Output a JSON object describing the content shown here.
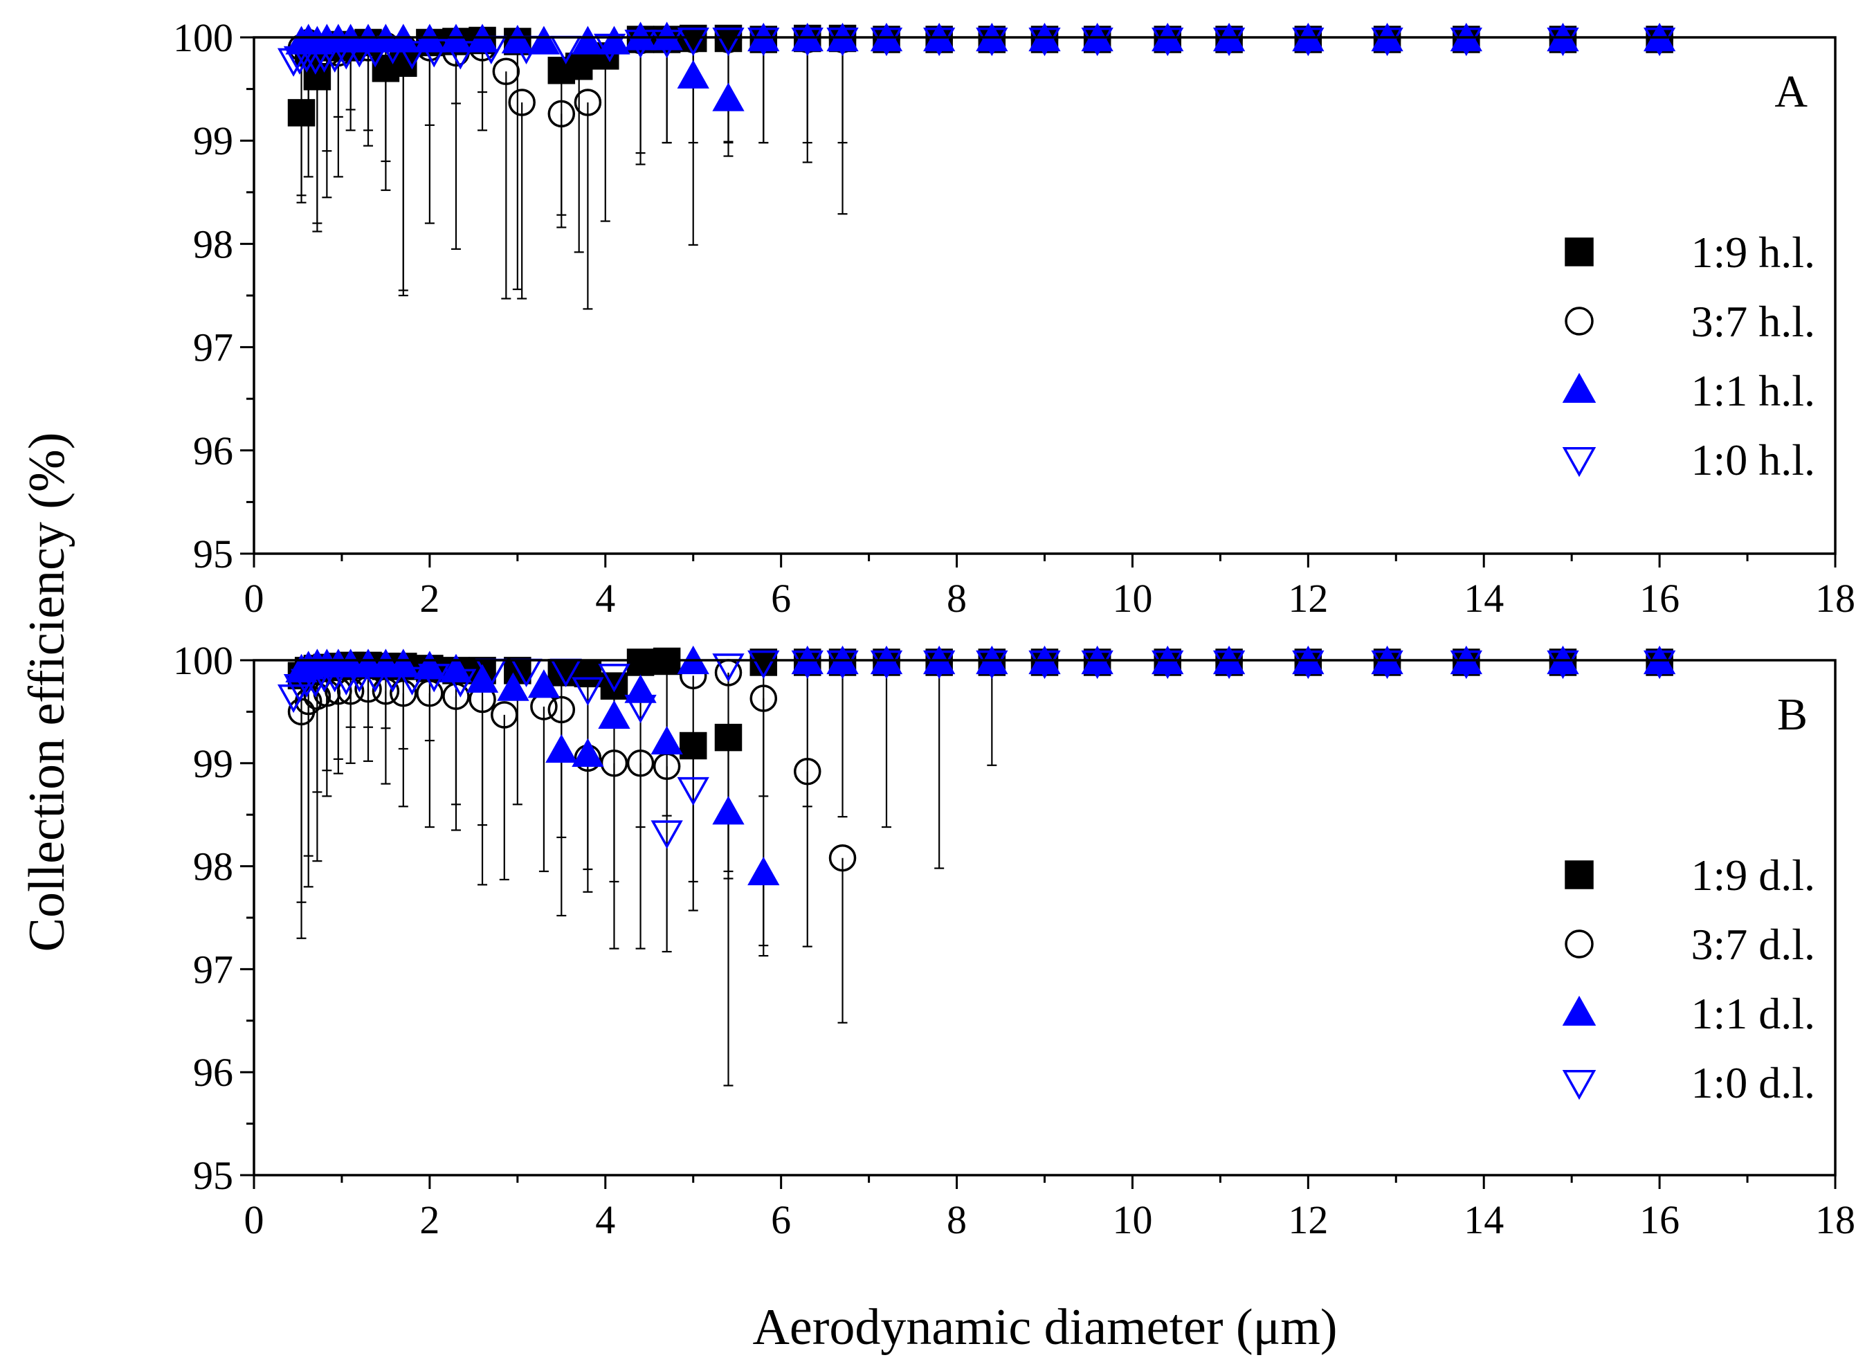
{
  "figure": {
    "xlabel": "Aerodynamic diameter (μm)",
    "ylabel": "Collection efficiency (%)"
  },
  "colors": {
    "black": "#000000",
    "blue": "#0000ff"
  },
  "chart_data": [
    {
      "type": "scatter",
      "panel": "A",
      "xlim": [
        0,
        18
      ],
      "ylim": [
        95,
        100
      ],
      "xticks": [
        0,
        2,
        4,
        6,
        8,
        10,
        12,
        14,
        16,
        18
      ],
      "yticks": [
        95,
        96,
        97,
        98,
        99,
        100
      ],
      "legend_position": "right",
      "series": [
        {
          "name": "1:9 h.l.",
          "marker": "square",
          "color": "#000000",
          "filled": true,
          "x": [
            0.54,
            0.62,
            0.72,
            0.83,
            0.96,
            1.1,
            1.3,
            1.5,
            1.7,
            2.0,
            2.3,
            2.6,
            3.0,
            3.5,
            3.7,
            4.0,
            4.4,
            4.7,
            5.0,
            5.4,
            5.8,
            6.3,
            6.7,
            7.2,
            7.8,
            8.4,
            9.0,
            9.6,
            10.4,
            11.1,
            12.0,
            12.9,
            13.8,
            14.9,
            16.0
          ],
          "y": [
            99.27,
            99.85,
            99.62,
            99.9,
            99.93,
            99.9,
            99.95,
            99.7,
            99.75,
            99.95,
            99.96,
            99.97,
            99.96,
            99.68,
            99.72,
            99.82,
            99.98,
            99.98,
            99.99,
            99.99,
            99.98,
            99.99,
            99.99,
            99.98,
            99.98,
            99.98,
            99.98,
            99.98,
            99.98,
            99.98,
            99.98,
            99.98,
            99.98,
            99.98,
            99.98
          ],
          "err_low": [
            0.8,
            0.6,
            1.5,
            1.0,
            0.7,
            0.6,
            1.0,
            0.9,
            2.2,
            0.8,
            0.6,
            0.5,
            2.4,
            1.4,
            1.8,
            1.6,
            1.1,
            1.0,
            2.0,
            1.0,
            1.0,
            1.2,
            1.7,
            0,
            0,
            0,
            0,
            0,
            0,
            0,
            0,
            0,
            0,
            0,
            0
          ]
        },
        {
          "name": "3:7 h.l.",
          "marker": "circle",
          "color": "#000000",
          "filled": false,
          "x": [
            0.54,
            0.62,
            0.72,
            0.83,
            0.96,
            1.1,
            1.3,
            1.5,
            1.7,
            2.0,
            2.3,
            2.6,
            2.87,
            3.05,
            3.5,
            3.8,
            4.4,
            4.7,
            5.0,
            5.4,
            5.8,
            6.3,
            6.7,
            7.2,
            7.8,
            8.4,
            9.0,
            9.6,
            10.4,
            11.1,
            12.0,
            12.9,
            13.8,
            14.9,
            16.0
          ],
          "y": [
            99.9,
            99.95,
            99.9,
            99.85,
            99.85,
            99.9,
            99.9,
            99.92,
            99.9,
            99.9,
            99.85,
            99.9,
            99.67,
            99.37,
            99.26,
            99.37,
            99.97,
            99.98,
            99.98,
            99.98,
            99.98,
            99.98,
            99.98,
            99.98,
            99.98,
            99.98,
            99.98,
            99.98,
            99.98,
            99.98,
            99.98,
            99.98,
            99.98,
            99.98,
            99.98
          ],
          "err_low": [
            1.5,
            1.3,
            1.7,
            1.4,
            1.2,
            0.8,
            0.8,
            1.4,
            2.4,
            1.7,
            1.9,
            0.8,
            2.2,
            1.9,
            1.1,
            2.0,
            1.2,
            1.0,
            1.0,
            1.0,
            1.0,
            1.0,
            1.0,
            0,
            0,
            0,
            0,
            0,
            0,
            0,
            0,
            0,
            0,
            0,
            0
          ]
        },
        {
          "name": "1:1 h.l.",
          "marker": "triangle-up",
          "color": "#0000ff",
          "filled": true,
          "x": [
            0.54,
            0.62,
            0.72,
            0.83,
            0.96,
            1.1,
            1.3,
            1.5,
            1.7,
            2.0,
            2.3,
            2.6,
            3.0,
            3.3,
            3.8,
            4.1,
            4.4,
            4.7,
            5.0,
            5.4,
            5.8,
            6.3,
            6.7,
            7.2,
            7.8,
            8.4,
            9.0,
            9.6,
            10.4,
            11.1,
            12.0,
            12.9,
            13.8,
            14.9,
            16.0
          ],
          "y": [
            99.95,
            99.97,
            99.95,
            99.97,
            99.97,
            99.97,
            99.97,
            99.97,
            99.97,
            99.97,
            99.97,
            99.97,
            99.96,
            99.95,
            99.95,
            99.95,
            99.99,
            99.99,
            99.62,
            99.4,
            99.98,
            99.98,
            99.98,
            99.98,
            99.98,
            99.98,
            99.98,
            99.98,
            99.98,
            99.98,
            99.98,
            99.98,
            99.98,
            99.98,
            99.98
          ],
          "err_low": [
            0,
            0,
            0,
            0,
            0,
            0,
            0,
            0,
            0,
            0,
            0,
            0,
            0,
            0,
            0,
            0,
            0,
            0,
            0,
            0.55,
            0,
            0,
            0,
            0,
            0,
            0,
            0,
            0,
            0,
            0,
            0,
            0,
            0,
            0,
            0
          ]
        },
        {
          "name": "1:0 h.l.",
          "marker": "triangle-down",
          "color": "#0000ff",
          "filled": false,
          "x": [
            0.45,
            0.52,
            0.6,
            0.7,
            0.8,
            0.92,
            1.05,
            1.2,
            1.38,
            1.58,
            1.8,
            2.05,
            2.35,
            2.7,
            3.1,
            3.55,
            4.05,
            4.4,
            4.7,
            5.0,
            5.4,
            5.8,
            6.3,
            6.7,
            7.2,
            7.8,
            8.4,
            9.0,
            9.6,
            10.4,
            11.1,
            12.0,
            12.9,
            13.8,
            14.9,
            16.0
          ],
          "y": [
            99.78,
            99.8,
            99.82,
            99.8,
            99.82,
            99.82,
            99.85,
            99.87,
            99.87,
            99.9,
            99.85,
            99.87,
            99.85,
            99.9,
            99.9,
            99.9,
            99.92,
            99.96,
            99.96,
            99.98,
            99.98,
            99.98,
            99.98,
            99.98,
            99.98,
            99.98,
            99.98,
            99.98,
            99.98,
            99.98,
            99.98,
            99.98,
            99.98,
            99.98,
            99.98,
            99.98
          ],
          "err_low": [
            0,
            0,
            0,
            0,
            0,
            0,
            0,
            0,
            0,
            0,
            0,
            0,
            0,
            0,
            0,
            0,
            0,
            0,
            0,
            0,
            0,
            0,
            0,
            0,
            0,
            0,
            0,
            0,
            0,
            0,
            0,
            0,
            0,
            0,
            0,
            0
          ]
        }
      ]
    },
    {
      "type": "scatter",
      "panel": "B",
      "xlim": [
        0,
        18
      ],
      "ylim": [
        95,
        100
      ],
      "xticks": [
        0,
        2,
        4,
        6,
        8,
        10,
        12,
        14,
        16,
        18
      ],
      "yticks": [
        95,
        96,
        97,
        98,
        99,
        100
      ],
      "legend_position": "right",
      "series": [
        {
          "name": "1:9 d.l.",
          "marker": "square",
          "color": "#000000",
          "filled": true,
          "x": [
            0.54,
            0.62,
            0.72,
            0.83,
            0.96,
            1.1,
            1.3,
            1.5,
            1.7,
            2.0,
            2.3,
            2.6,
            3.0,
            3.5,
            3.8,
            4.1,
            4.4,
            4.7,
            5.0,
            5.4,
            5.8,
            6.3,
            6.7,
            7.2,
            7.8,
            8.4,
            9.0,
            9.6,
            10.4,
            11.1,
            12.0,
            12.9,
            13.8,
            14.9,
            16.0
          ],
          "y": [
            99.85,
            99.9,
            99.92,
            99.93,
            99.94,
            99.95,
            99.95,
            99.94,
            99.94,
            99.92,
            99.9,
            99.9,
            99.9,
            99.88,
            99.87,
            99.75,
            99.98,
            99.99,
            99.17,
            99.25,
            99.98,
            99.98,
            99.98,
            99.98,
            99.98,
            99.98,
            99.98,
            99.98,
            99.98,
            99.98,
            99.98,
            99.98,
            99.98,
            99.98,
            99.98
          ],
          "err_low": [
            2.2,
            1.8,
            1.2,
            1.0,
            0.9,
            0.6,
            0.6,
            0.6,
            0.8,
            0.7,
            1.3,
            1.5,
            1.3,
            1.6,
            1.9,
            1.9,
            1.6,
            1.5,
            1.6,
            1.3,
            1.3,
            1.4,
            1.5,
            1.6,
            2.0,
            1.0,
            0,
            0,
            0,
            0,
            0,
            0,
            0,
            0,
            0
          ]
        },
        {
          "name": "3:7 d.l.",
          "marker": "circle",
          "color": "#000000",
          "filled": false,
          "x": [
            0.54,
            0.62,
            0.72,
            0.83,
            0.96,
            1.1,
            1.3,
            1.5,
            1.7,
            2.0,
            2.3,
            2.6,
            2.85,
            3.3,
            3.5,
            3.8,
            4.1,
            4.4,
            4.7,
            5.0,
            5.4,
            5.8,
            6.3,
            6.7,
            7.2,
            7.8,
            8.4,
            9.0,
            9.6,
            10.4,
            11.1,
            12.0,
            12.9,
            13.8,
            14.9,
            16.0
          ],
          "y": [
            99.5,
            99.6,
            99.65,
            99.68,
            99.7,
            99.7,
            99.72,
            99.7,
            99.68,
            99.68,
            99.65,
            99.62,
            99.47,
            99.55,
            99.52,
            99.05,
            99.0,
            99.0,
            98.97,
            99.85,
            99.88,
            99.63,
            98.92,
            98.08,
            99.98,
            99.98,
            99.98,
            99.98,
            99.98,
            99.98,
            99.98,
            99.98,
            99.98,
            99.98,
            99.98,
            99.98
          ],
          "err_low": [
            2.2,
            1.8,
            1.6,
            1.0,
            0.8,
            0.7,
            0.7,
            0.9,
            1.1,
            1.3,
            1.3,
            1.8,
            1.6,
            1.6,
            2.0,
            1.3,
            1.8,
            1.8,
            1.8,
            2.0,
            2.0,
            2.5,
            1.7,
            1.6,
            0,
            0,
            0,
            0,
            0,
            0,
            0,
            0,
            0,
            0,
            0,
            0
          ]
        },
        {
          "name": "1:1 d.l.",
          "marker": "triangle-up",
          "color": "#0000ff",
          "filled": true,
          "x": [
            0.54,
            0.62,
            0.72,
            0.83,
            0.96,
            1.1,
            1.3,
            1.5,
            1.7,
            2.0,
            2.3,
            2.6,
            2.95,
            3.3,
            3.5,
            3.8,
            4.1,
            4.4,
            4.7,
            5.0,
            5.4,
            5.8,
            6.3,
            6.7,
            7.2,
            7.8,
            8.4,
            9.0,
            9.6,
            10.4,
            11.1,
            12.0,
            12.9,
            13.8,
            14.9,
            16.0
          ],
          "y": [
            99.9,
            99.93,
            99.95,
            99.95,
            99.95,
            99.95,
            99.95,
            99.95,
            99.95,
            99.93,
            99.9,
            99.8,
            99.72,
            99.75,
            99.12,
            99.08,
            99.45,
            99.7,
            99.2,
            99.98,
            98.52,
            97.93,
            99.98,
            99.98,
            99.98,
            99.98,
            99.98,
            99.98,
            99.98,
            99.98,
            99.98,
            99.98,
            99.98,
            99.98,
            99.98,
            99.98
          ],
          "err_low": [
            0,
            0,
            0,
            0,
            0,
            0,
            0,
            0,
            0,
            0,
            0,
            0,
            0,
            0,
            0,
            0,
            0,
            0,
            0,
            0,
            2.65,
            0.7,
            0,
            0,
            0,
            0,
            0,
            0,
            0,
            0,
            0,
            0,
            0,
            0,
            0,
            0
          ]
        },
        {
          "name": "1:0 d.l.",
          "marker": "triangle-down",
          "color": "#0000ff",
          "filled": false,
          "x": [
            0.45,
            0.52,
            0.6,
            0.7,
            0.8,
            0.92,
            1.05,
            1.2,
            1.38,
            1.58,
            1.8,
            2.05,
            2.35,
            2.7,
            3.1,
            3.55,
            3.8,
            4.1,
            4.4,
            4.7,
            5.0,
            5.4,
            5.8,
            6.3,
            6.7,
            7.2,
            7.8,
            8.4,
            9.0,
            9.6,
            10.4,
            11.1,
            12.0,
            12.9,
            13.8,
            14.9,
            16.0
          ],
          "y": [
            99.65,
            99.75,
            99.8,
            99.8,
            99.85,
            99.85,
            99.82,
            99.85,
            99.85,
            99.85,
            99.82,
            99.85,
            99.8,
            99.9,
            99.9,
            99.9,
            99.72,
            99.85,
            99.55,
            98.33,
            98.75,
            99.95,
            99.98,
            99.98,
            99.98,
            99.98,
            99.98,
            99.98,
            99.98,
            99.98,
            99.98,
            99.98,
            99.98,
            99.98,
            99.98,
            99.98,
            99.98
          ],
          "err_low": [
            0,
            0,
            0,
            0,
            0,
            0,
            0,
            0,
            0,
            0,
            0,
            0,
            0,
            0,
            0,
            0,
            0,
            0,
            0,
            0,
            0,
            0,
            0,
            0,
            0,
            0,
            0,
            0,
            0,
            0,
            0,
            0,
            0,
            0,
            0,
            0,
            0
          ]
        }
      ]
    }
  ]
}
